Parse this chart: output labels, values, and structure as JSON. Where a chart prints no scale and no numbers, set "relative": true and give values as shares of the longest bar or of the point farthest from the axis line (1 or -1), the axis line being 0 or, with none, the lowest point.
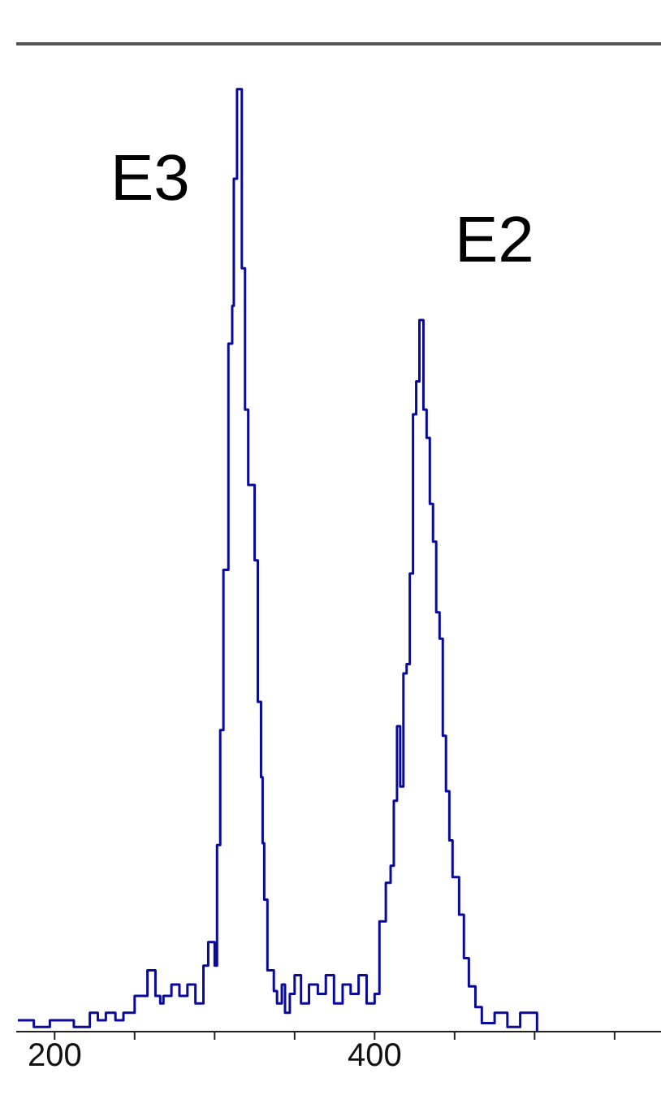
{
  "chart_data": {
    "type": "step",
    "relative": true,
    "x": [
      177,
      187,
      197,
      212,
      222,
      227,
      232,
      238,
      243,
      250,
      258,
      263,
      266,
      268,
      273,
      278,
      283,
      288,
      293,
      296,
      300,
      301.5,
      303.5,
      305.5,
      308.6,
      311,
      312,
      314,
      317,
      319,
      321,
      325,
      327,
      329,
      330,
      331,
      333,
      337,
      339,
      342,
      344,
      347,
      350,
      354,
      359,
      364.5,
      369.5,
      374.6,
      380,
      385,
      390,
      395,
      400,
      403,
      407,
      410,
      412,
      414,
      416,
      418,
      420,
      422,
      424,
      426,
      428,
      430.5,
      432.5,
      434.5,
      436.5,
      438.5,
      440.6,
      442.6,
      444.6,
      446.7,
      448.7,
      452.8,
      455.8,
      458.9,
      463,
      467,
      475,
      483,
      491,
      501.5
    ],
    "values": [
      0.012,
      0.005,
      0.012,
      0.005,
      0.02,
      0.012,
      0.02,
      0.012,
      0.02,
      0.038,
      0.065,
      0.038,
      0.03,
      0.038,
      0.05,
      0.038,
      0.05,
      0.03,
      0.07,
      0.095,
      0.07,
      0.198,
      0.32,
      0.49,
      0.73,
      0.77,
      0.905,
      1.0,
      0.81,
      0.66,
      0.58,
      0.5,
      0.35,
      0.27,
      0.2,
      0.14,
      0.065,
      0.043,
      0.03,
      0.05,
      0.02,
      0.04,
      0.06,
      0.03,
      0.05,
      0.04,
      0.06,
      0.03,
      0.05,
      0.04,
      0.06,
      0.03,
      0.04,
      0.117,
      0.158,
      0.176,
      0.245,
      0.324,
      0.26,
      0.38,
      0.39,
      0.486,
      0.655,
      0.69,
      0.755,
      0.66,
      0.63,
      0.56,
      0.52,
      0.445,
      0.417,
      0.314,
      0.255,
      0.203,
      0.164,
      0.124,
      0.078,
      0.048,
      0.026,
      0.009,
      0.02,
      0.005,
      0.02,
      0
    ],
    "color": "#0a0a9a",
    "xlim": [
      176,
      579
    ],
    "xticks": [
      200,
      {
        "value": 250,
        "label": null
      },
      {
        "value": 300,
        "label": null
      },
      {
        "value": 350,
        "label": null
      },
      400,
      {
        "value": 450,
        "label": null
      },
      {
        "value": 500,
        "label": null
      },
      {
        "value": 550,
        "label": null
      }
    ],
    "annotations": [
      "E3",
      "E2"
    ]
  }
}
